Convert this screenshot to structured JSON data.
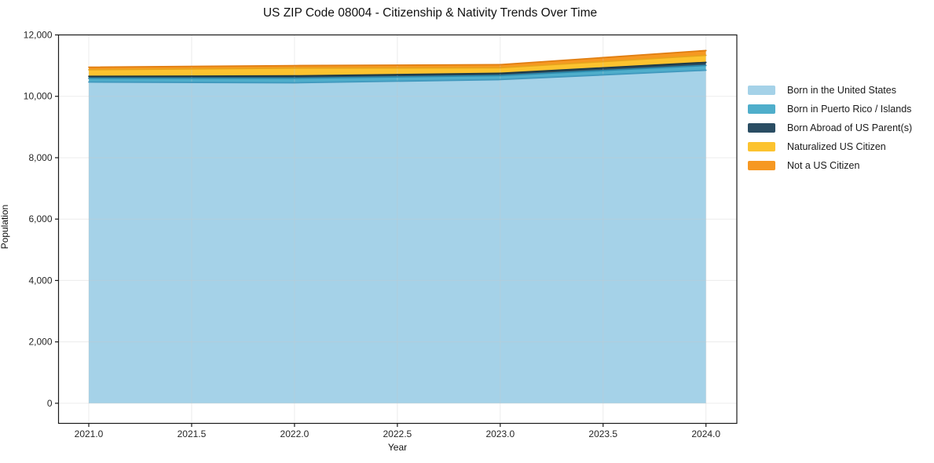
{
  "chart_data": {
    "type": "area",
    "stacked": true,
    "title": "US ZIP Code 08004 - Citizenship & Nativity Trends Over Time",
    "xlabel": "Year",
    "ylabel": "Population",
    "x": [
      2021,
      2022,
      2023,
      2024
    ],
    "series": [
      {
        "name": "Born in the United States",
        "color": "#A5D2E8",
        "edge": "#4199BE",
        "values": [
          10465,
          10440,
          10545,
          10850
        ]
      },
      {
        "name": "Born in Puerto Rico / Islands",
        "color": "#4FAECB",
        "edge": "#2E8BAD",
        "values": [
          125,
          150,
          130,
          155
        ]
      },
      {
        "name": "Born Abroad of US Parent(s)",
        "color": "#2A4D63",
        "edge": "#1C3947",
        "values": [
          60,
          75,
          75,
          100
        ]
      },
      {
        "name": "Naturalized US Citizen",
        "color": "#FCC32F",
        "edge": "#E8A31D",
        "values": [
          215,
          255,
          180,
          230
        ]
      },
      {
        "name": "Not a US Citizen",
        "color": "#F69822",
        "edge": "#E07E12",
        "values": [
          85,
          80,
          100,
          155
        ]
      }
    ],
    "x_ticks": [
      "2021.0",
      "2021.5",
      "2022.0",
      "2022.5",
      "2023.0",
      "2023.5",
      "2024.0"
    ],
    "x_tick_values": [
      2021,
      2021.5,
      2022,
      2022.5,
      2023,
      2023.5,
      2024
    ],
    "y_ticks": [
      "0",
      "2,000",
      "4,000",
      "6,000",
      "8,000",
      "10,000",
      "12,000"
    ],
    "y_tick_values": [
      0,
      2000,
      4000,
      6000,
      8000,
      10000,
      12000
    ],
    "xlim": [
      2020.853,
      2024.15
    ],
    "ylim": [
      -655,
      12000
    ],
    "grid": true,
    "legend_position": "right",
    "spine_color": "#1a1a1a",
    "grid_color": "#c9c9c9"
  }
}
